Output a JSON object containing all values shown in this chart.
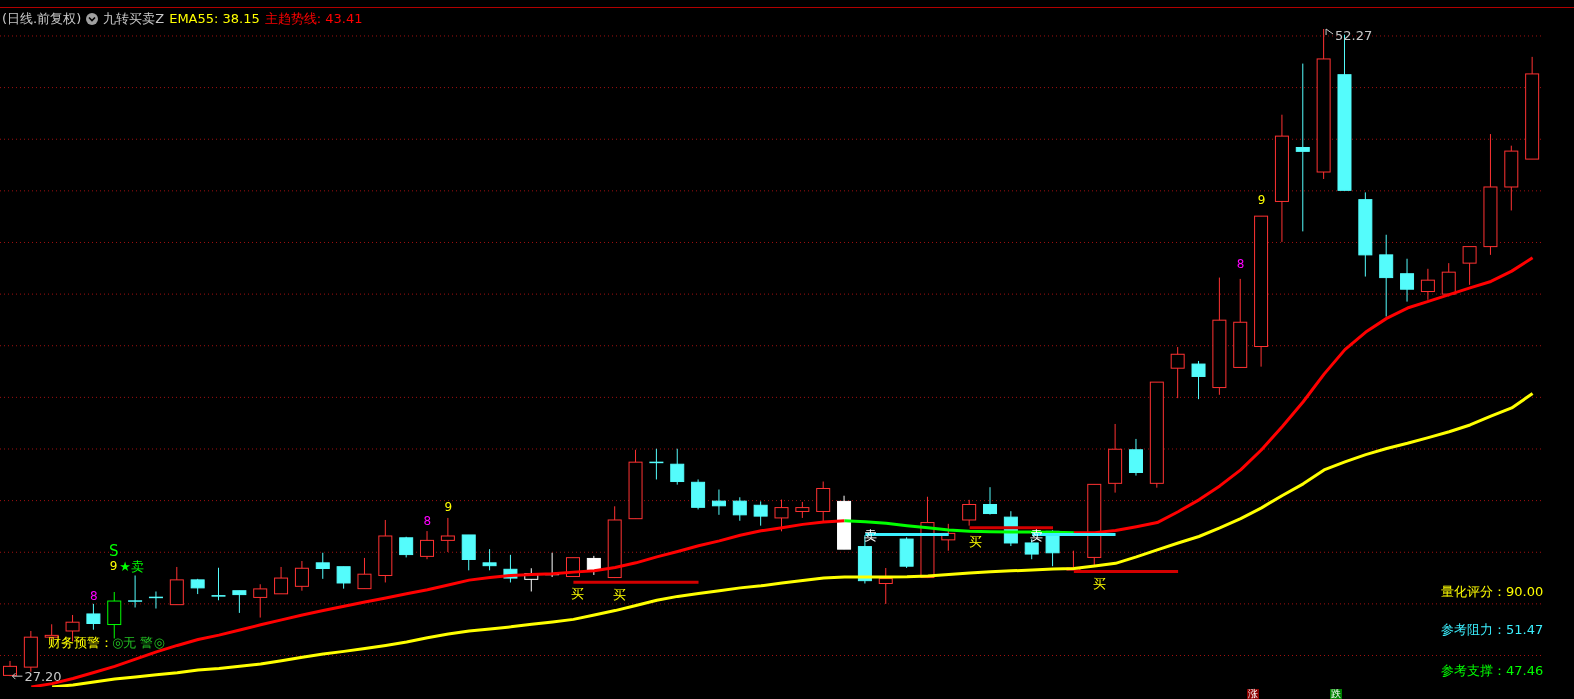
{
  "chart_data": {
    "type": "candlestick",
    "title": "(日线.前复权)",
    "subtitle": "九转买卖Z",
    "categories": [
      null,
      null,
      null,
      null,
      null,
      null,
      null,
      null,
      null,
      null,
      null,
      null,
      null,
      null,
      null,
      null,
      null,
      null,
      null,
      null,
      null,
      null,
      null,
      null,
      null,
      null,
      null,
      null,
      null,
      null,
      null,
      null,
      null,
      null,
      null,
      null,
      null,
      null,
      null,
      null,
      null,
      null,
      null,
      null,
      null,
      null,
      null,
      null,
      null,
      null,
      null,
      null,
      null,
      null,
      null,
      null,
      null,
      null,
      null,
      null,
      null,
      null,
      null,
      null,
      null,
      null,
      null,
      null,
      null,
      null,
      null,
      null,
      null,
      null
    ],
    "ohlc": [
      [
        27.23,
        27.79,
        27.2,
        27.58
      ],
      [
        27.55,
        28.95,
        27.37,
        28.71
      ],
      [
        28.71,
        29.21,
        28.55,
        28.78
      ],
      [
        28.95,
        29.57,
        28.55,
        29.29
      ],
      [
        29.61,
        30.0,
        29.0,
        29.24
      ],
      [
        29.2,
        30.46,
        28.66,
        30.11
      ],
      [
        30.11,
        31.1,
        29.86,
        30.1
      ],
      [
        30.25,
        30.48,
        29.82,
        30.25
      ],
      [
        29.97,
        31.43,
        29.97,
        30.93
      ],
      [
        30.93,
        30.97,
        30.38,
        30.62
      ],
      [
        30.32,
        31.4,
        30.14,
        30.3
      ],
      [
        30.51,
        30.51,
        29.65,
        30.36
      ],
      [
        30.25,
        30.76,
        29.47,
        30.58
      ],
      [
        30.39,
        31.43,
        30.39,
        31.0
      ],
      [
        30.68,
        31.66,
        30.51,
        31.38
      ],
      [
        31.59,
        31.98,
        30.97,
        31.37
      ],
      [
        31.44,
        31.44,
        30.59,
        30.81
      ],
      [
        30.59,
        31.78,
        30.59,
        31.15
      ],
      [
        31.1,
        33.25,
        30.83,
        32.63
      ],
      [
        32.56,
        32.6,
        31.8,
        31.91
      ],
      [
        31.84,
        32.82,
        31.73,
        32.46
      ],
      [
        32.46,
        33.33,
        32.01,
        32.63
      ],
      [
        32.67,
        32.67,
        31.3,
        31.72
      ],
      [
        31.59,
        32.12,
        31.3,
        31.48
      ],
      [
        31.34,
        31.9,
        30.83,
        31.0
      ],
      [
        30.95,
        31.38,
        30.48,
        31.17
      ],
      [
        31.13,
        31.98,
        31.04,
        31.14
      ],
      [
        31.06,
        31.79,
        31.06,
        31.79
      ],
      [
        31.76,
        31.86,
        31.12,
        31.31
      ],
      [
        31.02,
        33.78,
        31.0,
        33.25
      ],
      [
        33.3,
        35.97,
        33.3,
        35.49
      ],
      [
        35.49,
        36.01,
        34.82,
        35.47
      ],
      [
        35.41,
        36.01,
        34.62,
        34.74
      ],
      [
        34.71,
        34.82,
        33.66,
        33.74
      ],
      [
        33.98,
        34.43,
        33.45,
        33.8
      ],
      [
        33.98,
        34.13,
        33.22,
        33.45
      ],
      [
        33.82,
        33.97,
        33.03,
        33.4
      ],
      [
        33.33,
        34.04,
        32.81,
        33.73
      ],
      [
        33.58,
        33.95,
        33.33,
        33.73
      ],
      [
        33.58,
        34.74,
        33.18,
        34.47
      ],
      [
        33.97,
        34.19,
        32.12,
        32.12
      ],
      [
        32.22,
        32.66,
        30.79,
        30.9
      ],
      [
        30.79,
        31.39,
        30.0,
        30.98
      ],
      [
        32.51,
        32.58,
        31.39,
        31.46
      ],
      [
        31.02,
        34.15,
        31.0,
        33.15
      ],
      [
        32.48,
        33.1,
        32.06,
        32.73
      ],
      [
        33.25,
        34.03,
        33.03,
        33.85
      ],
      [
        33.85,
        34.52,
        33.46,
        33.5
      ],
      [
        33.36,
        33.59,
        32.24,
        32.36
      ],
      [
        32.36,
        32.51,
        31.73,
        31.93
      ],
      [
        32.81,
        32.85,
        31.46,
        31.98
      ],
      [
        31.31,
        32.06,
        31.31,
        31.39
      ],
      [
        31.8,
        34.63,
        31.5,
        34.63
      ],
      [
        34.67,
        36.97,
        34.31,
        35.99
      ],
      [
        35.97,
        36.39,
        34.97,
        35.09
      ],
      [
        34.67,
        38.59,
        34.5,
        38.59
      ],
      [
        39.13,
        39.95,
        37.97,
        39.67
      ],
      [
        39.29,
        39.41,
        37.93,
        38.81
      ],
      [
        38.38,
        42.64,
        38.1,
        40.99
      ],
      [
        39.16,
        42.59,
        39.16,
        40.91
      ],
      [
        39.97,
        45.02,
        39.19,
        45.02
      ],
      [
        45.59,
        48.95,
        44.02,
        48.12
      ],
      [
        47.68,
        50.93,
        44.43,
        47.53
      ],
      [
        46.73,
        52.27,
        46.46,
        51.11
      ],
      [
        50.5,
        52.05,
        46.02,
        46.02
      ],
      [
        45.66,
        45.94,
        42.68,
        43.52
      ],
      [
        43.52,
        44.3,
        41.13,
        42.64
      ],
      [
        42.79,
        43.37,
        41.71,
        42.19
      ],
      [
        42.1,
        42.98,
        41.78,
        42.54
      ],
      [
        42.0,
        43.2,
        41.91,
        42.85
      ],
      [
        43.2,
        43.84,
        42.36,
        43.84
      ],
      [
        43.84,
        48.2,
        43.52,
        46.15
      ],
      [
        46.15,
        47.75,
        45.24,
        47.54
      ],
      [
        47.23,
        51.19,
        47.23,
        50.53
      ]
    ],
    "colors": [
      "#ff3232",
      "#ff3232",
      "#ff3232",
      "#ff3232",
      "#54fcfc",
      "#00ff00",
      "#54fcfc",
      "#54fcfc",
      "#ff3232",
      "#54fcfc",
      "#54fcfc",
      "#54fcfc",
      "#ff3232",
      "#ff3232",
      "#ff3232",
      "#54fcfc",
      "#54fcfc",
      "#ff3232",
      "#ff3232",
      "#54fcfc",
      "#ff3232",
      "#ff3232",
      "#54fcfc",
      "#54fcfc",
      "#54fcfc",
      "#ffffff",
      "#ffffff",
      "#ff3232",
      "#ffffff",
      "#ff3232",
      "#ff3232",
      "#54fcfc",
      "#54fcfc",
      "#54fcfc",
      "#54fcfc",
      "#54fcfc",
      "#54fcfc",
      "#ff3232",
      "#ff3232",
      "#ff3232",
      "#ffffff",
      "#54fcfc",
      "#ff3232",
      "#54fcfc",
      "#ff3232",
      "#ff3232",
      "#ff3232",
      "#54fcfc",
      "#54fcfc",
      "#54fcfc",
      "#54fcfc",
      "#ff3232",
      "#ff3232",
      "#ff3232",
      "#54fcfc",
      "#ff3232",
      "#ff3232",
      "#54fcfc",
      "#ff3232",
      "#ff3232",
      "#ff3232",
      "#ff3232",
      "#54fcfc",
      "#ff3232",
      "#54fcfc",
      "#54fcfc",
      "#54fcfc",
      "#54fcfc",
      "#ff3232",
      "#ff3232",
      "#ff3232",
      "#ff3232",
      "#ff3232",
      "#ff3232"
    ],
    "series": [
      {
        "name": "EMA55: 38.15",
        "type": "line",
        "color": "#ffff00",
        "values": [
          null,
          null,
          26.78,
          26.86,
          26.97,
          27.09,
          27.17,
          27.25,
          27.33,
          27.44,
          27.5,
          27.58,
          27.67,
          27.8,
          27.93,
          28.06,
          28.16,
          28.27,
          28.39,
          28.52,
          28.69,
          28.83,
          28.95,
          29.03,
          29.11,
          29.21,
          29.3,
          29.4,
          29.57,
          29.74,
          29.94,
          30.14,
          30.29,
          30.4,
          30.51,
          30.62,
          30.7,
          30.81,
          30.91,
          31.0,
          31.04,
          31.04,
          31.04,
          31.05,
          31.08,
          31.14,
          31.2,
          31.24,
          31.28,
          31.31,
          31.35,
          31.37,
          31.47,
          31.57,
          31.82,
          32.09,
          32.36,
          32.61,
          32.94,
          33.3,
          33.72,
          34.2,
          34.65,
          35.19,
          35.5,
          35.78,
          36.02,
          36.22,
          36.44,
          36.67,
          36.93,
          37.27,
          37.59,
          38.15
        ]
      },
      {
        "name": "主趋势线: 43.41",
        "type": "line",
        "color": "#ff0000",
        "values": [
          null,
          26.78,
          26.91,
          27.11,
          27.34,
          27.58,
          27.86,
          28.14,
          28.39,
          28.62,
          28.79,
          28.99,
          29.19,
          29.38,
          29.57,
          29.74,
          29.91,
          30.07,
          30.23,
          30.39,
          30.55,
          30.73,
          30.92,
          31.02,
          31.1,
          31.14,
          31.17,
          31.23,
          31.28,
          31.41,
          31.59,
          31.82,
          32.03,
          32.25,
          32.44,
          32.66,
          32.83,
          32.95,
          33.08,
          33.17,
          33.22,
          null,
          null,
          null,
          null,
          null,
          null,
          null,
          null,
          null,
          null,
          32.76,
          32.76,
          32.84,
          32.99,
          33.15,
          33.57,
          34.03,
          34.57,
          35.19,
          35.97,
          36.87,
          37.83,
          38.9,
          39.85,
          40.53,
          41.06,
          41.46,
          41.72,
          41.98,
          42.24,
          42.49,
          42.89,
          43.41
        ]
      },
      {
        "type": "line",
        "color": "#00ff00",
        "values": [
          null,
          null,
          null,
          null,
          null,
          null,
          null,
          null,
          null,
          null,
          null,
          null,
          null,
          null,
          null,
          null,
          null,
          null,
          null,
          null,
          null,
          null,
          null,
          null,
          null,
          null,
          null,
          null,
          null,
          null,
          null,
          null,
          null,
          null,
          null,
          null,
          null,
          null,
          null,
          null,
          33.22,
          33.18,
          33.12,
          33.03,
          32.95,
          32.86,
          32.81,
          32.79,
          32.78,
          32.78,
          32.77,
          32.76,
          null,
          null,
          null,
          null,
          null,
          null,
          null,
          null,
          null,
          null,
          null,
          null,
          null,
          null,
          null,
          null,
          null,
          null,
          null,
          null,
          null,
          null
        ]
      },
      {
        "type": "line",
        "color": "#d40000",
        "values": [
          null,
          null,
          null,
          null,
          null,
          null,
          null,
          null,
          null,
          null,
          null,
          null,
          null,
          null,
          null,
          null,
          null,
          null,
          null,
          null,
          null,
          null,
          null,
          null,
          null,
          null,
          null,
          30.84,
          30.84,
          30.84,
          30.84,
          30.84,
          30.84,
          30.84,
          null,
          null,
          null,
          null,
          null,
          null,
          null,
          null,
          null,
          null,
          null,
          null,
          null,
          null,
          null,
          null,
          null,
          31.25,
          31.25,
          31.25,
          31.25,
          31.25,
          31.25,
          null,
          null,
          null,
          null,
          null,
          null,
          null,
          null,
          null,
          null,
          null,
          null,
          null,
          null,
          null,
          null,
          null
        ]
      },
      {
        "type": "line",
        "color": "#d40000",
        "values": [
          null,
          null,
          null,
          null,
          null,
          null,
          null,
          null,
          null,
          null,
          null,
          null,
          null,
          null,
          null,
          null,
          null,
          null,
          null,
          null,
          null,
          null,
          null,
          null,
          null,
          null,
          null,
          null,
          null,
          null,
          null,
          null,
          null,
          null,
          null,
          null,
          null,
          null,
          null,
          null,
          null,
          null,
          null,
          null,
          null,
          null,
          32.95,
          32.95,
          32.95,
          32.95,
          32.95,
          null,
          null,
          null,
          null,
          null,
          null,
          null,
          null,
          null,
          null,
          null,
          null,
          null,
          null,
          null,
          null,
          null,
          null,
          null,
          null,
          null,
          null,
          null
        ]
      },
      {
        "type": "line",
        "color": "#3cf0ff",
        "values": [
          null,
          null,
          null,
          null,
          null,
          null,
          null,
          null,
          null,
          null,
          null,
          null,
          null,
          null,
          null,
          null,
          null,
          null,
          null,
          null,
          null,
          null,
          null,
          null,
          null,
          null,
          null,
          null,
          null,
          null,
          null,
          null,
          null,
          null,
          null,
          null,
          null,
          null,
          null,
          null,
          null,
          32.69,
          32.69,
          32.69,
          32.69,
          32.69,
          null,
          null,
          null,
          32.69,
          32.69,
          32.69,
          32.69,
          32.69,
          null,
          null,
          null,
          null,
          null,
          null,
          null,
          null,
          null,
          null,
          null,
          null,
          null,
          null,
          null,
          null,
          null,
          null,
          null,
          null
        ]
      }
    ],
    "yticks": [
      {
        "value": 28,
        "label": null
      },
      {
        "value": 30,
        "label": null
      },
      {
        "value": 32,
        "label": null
      },
      {
        "value": 34,
        "label": null
      },
      {
        "value": 36,
        "label": null
      },
      {
        "value": 38,
        "label": null
      },
      {
        "value": 40,
        "label": null
      },
      {
        "value": 42,
        "label": null
      },
      {
        "value": 44,
        "label": null
      },
      {
        "value": 46,
        "label": null
      },
      {
        "value": 48,
        "label": null
      },
      {
        "value": 50,
        "label": null
      },
      {
        "value": 52,
        "label": null
      }
    ],
    "grid": "y",
    "legend": "top left",
    "tick_labels": false,
    "annotations": [
      "S",
      "9",
      "★卖",
      "8",
      "8",
      "9",
      "买",
      "买",
      "卖",
      "买",
      "卖",
      "买",
      "8",
      "9",
      "财务预警：",
      "◎无 警◎",
      "量化评分：90.00",
      "参考阻力：51.47",
      "参考支撑：47.46",
      "涨",
      "跌",
      "52.27",
      "27.20"
    ]
  }
}
